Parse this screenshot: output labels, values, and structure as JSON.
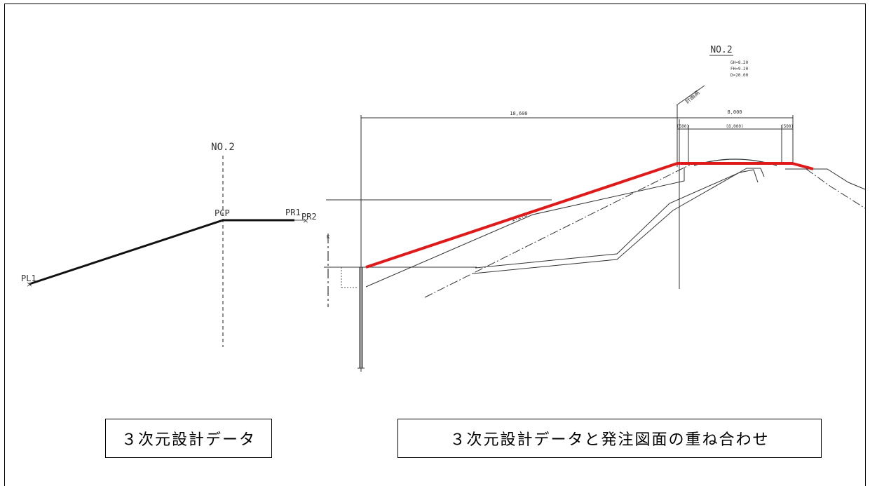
{
  "left_panel": {
    "station": "NO.2",
    "pl1": "PL1",
    "pcp": "PCP",
    "pr1": "PR1",
    "pr2": "PR2",
    "caption": "３次元設計データ"
  },
  "right_panel": {
    "station": "NO.2",
    "station_notes": [
      "GH=8.20",
      "FH=9.20",
      "D=20.00"
    ],
    "center_line_label": "計画高",
    "width_total": "18,600",
    "width_road": "8,000",
    "shoulder_left": "(500)",
    "carriageway": "(8,000)",
    "shoulder_right": "(500)",
    "slope": "1:2.0",
    "caption": "３次元設計データと発注図面の重ね合わせ"
  },
  "colors": {
    "design_line": "#e01a1a",
    "drawing_line": "#222222"
  }
}
